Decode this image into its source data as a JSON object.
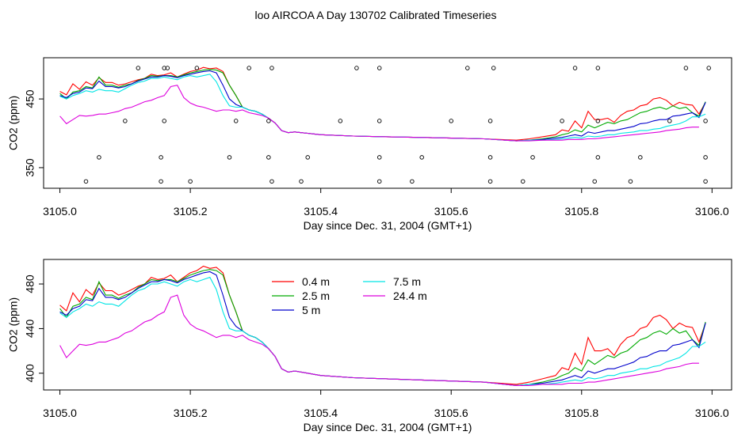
{
  "title": "loo AIRCOA A  Day 130702  Calibrated Timeseries",
  "chart_data": [
    {
      "type": "scatter",
      "xlabel": "Day since Dec. 31, 2004 (GMT+1)",
      "ylabel": "CO2 (ppm)",
      "xlim": [
        3104.975,
        3106.03
      ],
      "ylim": [
        320,
        510
      ],
      "x_ticks": [
        "3105.0",
        "3105.2",
        "3105.4",
        "3105.6",
        "3105.8",
        "3106.0"
      ],
      "y_ticks": [
        "350",
        "450"
      ],
      "grid": false,
      "series": [
        {
          "name": "0.4 m",
          "color": "#ff0000",
          "x": [
            3105.0,
            3105.01,
            3105.02,
            3105.03,
            3105.04,
            3105.05,
            3105.06,
            3105.07,
            3105.08,
            3105.09,
            3105.1,
            3105.11,
            3105.12,
            3105.13,
            3105.14,
            3105.15,
            3105.16,
            3105.17,
            3105.18,
            3105.19,
            3105.2,
            3105.21,
            3105.22,
            3105.23,
            3105.24,
            3105.25,
            3105.26,
            3105.27,
            3105.28,
            3105.29,
            3105.3,
            3105.31,
            3105.32,
            3105.33,
            3105.34,
            3105.35,
            3105.36,
            3105.37,
            3105.38,
            3105.39,
            3105.4,
            3105.45,
            3105.5,
            3105.55,
            3105.6,
            3105.65,
            3105.7,
            3105.72,
            3105.74,
            3105.76,
            3105.77,
            3105.78,
            3105.79,
            3105.8,
            3105.81,
            3105.82,
            3105.83,
            3105.84,
            3105.85,
            3105.86,
            3105.87,
            3105.88,
            3105.89,
            3105.9,
            3105.91,
            3105.92,
            3105.93,
            3105.94,
            3105.95,
            3105.96,
            3105.97,
            3105.98,
            3105.99
          ],
          "y": [
            461,
            456,
            472,
            464,
            475,
            470,
            481,
            474,
            474,
            470,
            472,
            475,
            478,
            480,
            486,
            484,
            485,
            488,
            482,
            486,
            490,
            492,
            496,
            494,
            495,
            490,
            470,
            455,
            438,
            434,
            432,
            428,
            422,
            415,
            404,
            401,
            402,
            401,
            400,
            399,
            398,
            396,
            395,
            394,
            393,
            392,
            390,
            392,
            395,
            398,
            405,
            403,
            418,
            408,
            432,
            420,
            420,
            422,
            416,
            426,
            432,
            434,
            440,
            442,
            450,
            452,
            448,
            440,
            445,
            442,
            441,
            428,
            445
          ]
        },
        {
          "name": "2.5 m",
          "color": "#00aa00",
          "x": [
            3105.0,
            3105.01,
            3105.02,
            3105.03,
            3105.04,
            3105.05,
            3105.06,
            3105.07,
            3105.08,
            3105.09,
            3105.1,
            3105.11,
            3105.12,
            3105.13,
            3105.14,
            3105.15,
            3105.16,
            3105.17,
            3105.18,
            3105.19,
            3105.2,
            3105.21,
            3105.22,
            3105.23,
            3105.24,
            3105.25,
            3105.26,
            3105.27,
            3105.28,
            3105.29,
            3105.3,
            3105.31,
            3105.32,
            3105.33,
            3105.34,
            3105.35,
            3105.36,
            3105.37,
            3105.38,
            3105.39,
            3105.4,
            3105.45,
            3105.5,
            3105.55,
            3105.6,
            3105.65,
            3105.7,
            3105.72,
            3105.74,
            3105.76,
            3105.77,
            3105.78,
            3105.79,
            3105.8,
            3105.81,
            3105.82,
            3105.83,
            3105.84,
            3105.85,
            3105.86,
            3105.87,
            3105.88,
            3105.89,
            3105.9,
            3105.91,
            3105.92,
            3105.93,
            3105.94,
            3105.95,
            3105.96,
            3105.97,
            3105.98,
            3105.99
          ],
          "y": [
            458,
            450,
            460,
            462,
            468,
            466,
            482,
            470,
            470,
            467,
            470,
            472,
            477,
            480,
            484,
            483,
            484,
            484,
            482,
            485,
            488,
            490,
            492,
            493,
            492,
            488,
            470,
            455,
            438,
            434,
            432,
            428,
            422,
            415,
            404,
            401,
            402,
            401,
            400,
            399,
            398,
            396,
            395,
            394,
            393,
            392,
            389,
            390,
            392,
            395,
            398,
            400,
            405,
            402,
            412,
            408,
            412,
            416,
            414,
            418,
            420,
            425,
            430,
            432,
            436,
            438,
            435,
            440,
            436,
            438,
            430,
            425,
            446
          ]
        },
        {
          "name": "5 m",
          "color": "#0000cc",
          "x": [
            3105.0,
            3105.01,
            3105.02,
            3105.03,
            3105.04,
            3105.05,
            3105.06,
            3105.07,
            3105.08,
            3105.09,
            3105.1,
            3105.11,
            3105.12,
            3105.13,
            3105.14,
            3105.15,
            3105.16,
            3105.17,
            3105.18,
            3105.19,
            3105.2,
            3105.21,
            3105.22,
            3105.23,
            3105.24,
            3105.25,
            3105.26,
            3105.27,
            3105.28,
            3105.29,
            3105.3,
            3105.31,
            3105.32,
            3105.33,
            3105.34,
            3105.35,
            3105.36,
            3105.37,
            3105.38,
            3105.39,
            3105.4,
            3105.45,
            3105.5,
            3105.55,
            3105.6,
            3105.65,
            3105.7,
            3105.72,
            3105.74,
            3105.76,
            3105.77,
            3105.78,
            3105.79,
            3105.8,
            3105.81,
            3105.82,
            3105.83,
            3105.84,
            3105.85,
            3105.86,
            3105.87,
            3105.88,
            3105.89,
            3105.9,
            3105.91,
            3105.92,
            3105.93,
            3105.94,
            3105.95,
            3105.96,
            3105.97,
            3105.98,
            3105.99
          ],
          "y": [
            455,
            452,
            458,
            460,
            466,
            465,
            476,
            468,
            468,
            466,
            468,
            472,
            476,
            479,
            482,
            482,
            484,
            483,
            481,
            484,
            486,
            488,
            490,
            491,
            488,
            470,
            450,
            442,
            438,
            434,
            432,
            428,
            422,
            415,
            404,
            401,
            402,
            401,
            400,
            399,
            398,
            396,
            395,
            394,
            393,
            392,
            389,
            390,
            391,
            393,
            394,
            396,
            398,
            396,
            402,
            400,
            402,
            404,
            404,
            406,
            408,
            410,
            414,
            415,
            418,
            420,
            420,
            425,
            426,
            428,
            430,
            423,
            445
          ]
        },
        {
          "name": "7.5 m",
          "color": "#00e5e5",
          "x": [
            3105.0,
            3105.01,
            3105.02,
            3105.03,
            3105.04,
            3105.05,
            3105.06,
            3105.07,
            3105.08,
            3105.09,
            3105.1,
            3105.11,
            3105.12,
            3105.13,
            3105.14,
            3105.15,
            3105.16,
            3105.17,
            3105.18,
            3105.19,
            3105.2,
            3105.21,
            3105.22,
            3105.23,
            3105.24,
            3105.25,
            3105.26,
            3105.27,
            3105.28,
            3105.29,
            3105.3,
            3105.31,
            3105.32,
            3105.33,
            3105.34,
            3105.35,
            3105.36,
            3105.37,
            3105.38,
            3105.39,
            3105.4,
            3105.45,
            3105.5,
            3105.55,
            3105.6,
            3105.65,
            3105.7,
            3105.72,
            3105.74,
            3105.76,
            3105.77,
            3105.78,
            3105.79,
            3105.8,
            3105.81,
            3105.82,
            3105.83,
            3105.84,
            3105.85,
            3105.86,
            3105.87,
            3105.88,
            3105.89,
            3105.9,
            3105.91,
            3105.92,
            3105.93,
            3105.94,
            3105.95,
            3105.96,
            3105.97,
            3105.98,
            3105.99
          ],
          "y": [
            454,
            450,
            455,
            458,
            462,
            460,
            464,
            462,
            462,
            460,
            465,
            470,
            474,
            476,
            480,
            480,
            482,
            480,
            478,
            482,
            484,
            482,
            484,
            486,
            475,
            455,
            440,
            438,
            438,
            434,
            432,
            428,
            422,
            415,
            404,
            401,
            402,
            401,
            400,
            399,
            398,
            396,
            395,
            394,
            393,
            392,
            389,
            390,
            390,
            391,
            392,
            393,
            394,
            393,
            396,
            395,
            396,
            398,
            398,
            400,
            401,
            402,
            404,
            404,
            406,
            407,
            410,
            412,
            414,
            418,
            424,
            424,
            428
          ]
        },
        {
          "name": "24.4 m",
          "color": "#dd00dd",
          "x": [
            3105.0,
            3105.01,
            3105.02,
            3105.03,
            3105.04,
            3105.05,
            3105.06,
            3105.07,
            3105.08,
            3105.09,
            3105.1,
            3105.11,
            3105.12,
            3105.13,
            3105.14,
            3105.15,
            3105.16,
            3105.17,
            3105.18,
            3105.19,
            3105.2,
            3105.21,
            3105.22,
            3105.23,
            3105.24,
            3105.25,
            3105.26,
            3105.27,
            3105.28,
            3105.29,
            3105.3,
            3105.31,
            3105.32,
            3105.33,
            3105.34,
            3105.35,
            3105.36,
            3105.37,
            3105.38,
            3105.39,
            3105.4,
            3105.45,
            3105.5,
            3105.55,
            3105.6,
            3105.65,
            3105.7,
            3105.72,
            3105.74,
            3105.76,
            3105.77,
            3105.78,
            3105.79,
            3105.8,
            3105.81,
            3105.82,
            3105.83,
            3105.84,
            3105.85,
            3105.86,
            3105.87,
            3105.88,
            3105.89,
            3105.9,
            3105.91,
            3105.92,
            3105.93,
            3105.94,
            3105.95,
            3105.96,
            3105.97,
            3105.98
          ],
          "y": [
            425,
            414,
            420,
            426,
            425,
            426,
            428,
            428,
            430,
            432,
            436,
            438,
            442,
            446,
            448,
            452,
            455,
            468,
            470,
            452,
            444,
            440,
            438,
            435,
            432,
            434,
            434,
            432,
            434,
            430,
            428,
            426,
            422,
            415,
            404,
            401,
            402,
            401,
            400,
            399,
            398,
            396,
            395,
            394,
            393,
            392,
            389,
            389,
            390,
            390,
            390,
            391,
            391,
            391,
            392,
            392,
            393,
            394,
            395,
            396,
            397,
            398,
            399,
            400,
            401,
            402,
            404,
            405,
            406,
            408,
            409,
            409
          ]
        },
        {
          "name": "",
          "mode": "points",
          "color": "#000000",
          "x": [
            3105.04,
            3105.06,
            3105.1,
            3105.12,
            3105.155,
            3105.155,
            3105.16,
            3105.16,
            3105.165,
            3105.2,
            3105.21,
            3105.26,
            3105.27,
            3105.29,
            3105.32,
            3105.32,
            3105.325,
            3105.325,
            3105.37,
            3105.38,
            3105.43,
            3105.455,
            3105.49,
            3105.49,
            3105.49,
            3105.49,
            3105.54,
            3105.555,
            3105.6,
            3105.625,
            3105.66,
            3105.66,
            3105.66,
            3105.665,
            3105.71,
            3105.725,
            3105.77,
            3105.79,
            3105.82,
            3105.825,
            3105.825,
            3105.825,
            3105.875,
            3105.89,
            3105.935,
            3105.96,
            3105.99,
            3105.99,
            3105.99,
            3105.995
          ],
          "y": [
            330,
            365,
            418,
            495,
            330,
            365,
            418,
            495,
            495,
            330,
            495,
            365,
            418,
            495,
            365,
            418,
            495,
            330,
            330,
            365,
            418,
            495,
            330,
            365,
            418,
            495,
            330,
            365,
            418,
            495,
            330,
            365,
            418,
            495,
            330,
            365,
            418,
            495,
            330,
            365,
            418,
            495,
            330,
            365,
            418,
            495,
            330,
            365,
            418,
            495
          ]
        }
      ]
    },
    {
      "type": "line",
      "xlabel": "Day since Dec. 31, 2004 (GMT+1)",
      "ylabel": "CO2 (ppm)",
      "xlim": [
        3104.975,
        3106.03
      ],
      "ylim": [
        385,
        502
      ],
      "x_ticks": [
        "3105.0",
        "3105.2",
        "3105.4",
        "3105.6",
        "3105.8",
        "3106.0"
      ],
      "y_ticks": [
        "400",
        "440",
        "480"
      ],
      "grid": false,
      "legend_placement": "top-center",
      "series_ref": "same as panel 1 (first five series)"
    }
  ]
}
